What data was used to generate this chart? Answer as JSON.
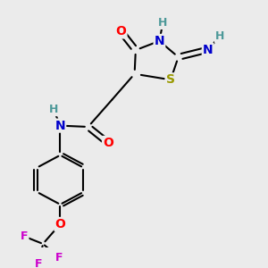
{
  "background_color": "#ebebeb",
  "figsize": [
    3.0,
    3.0
  ],
  "dpi": 100,
  "bond_lw": 1.5,
  "font_size_atom": 10,
  "font_size_h": 9,
  "colors": {
    "C": "#000000",
    "N": "#0000cc",
    "O": "#ff0000",
    "S": "#999900",
    "F": "#cc00cc",
    "H": "#4d9999"
  },
  "xlim": [
    0,
    10
  ],
  "ylim": [
    0,
    10
  ]
}
